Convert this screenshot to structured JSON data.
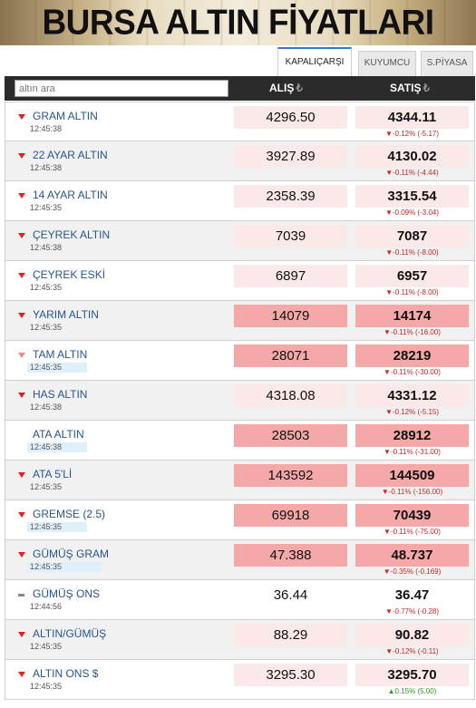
{
  "banner": {
    "title": "BURSA ALTIN FİYATLARI"
  },
  "tabs": [
    {
      "label": "KAPALIÇARŞI",
      "active": true
    },
    {
      "label": "KUYUMCU",
      "active": false
    },
    {
      "label": "S.PİYASA",
      "active": false
    }
  ],
  "header": {
    "search_placeholder": "altın ara",
    "alis_label": "ALIŞ",
    "satis_label": "SATIŞ",
    "currency_symbol": "₺"
  },
  "rows": [
    {
      "name": "GRAM ALTIN",
      "time": "12:45:38",
      "alis": "4296.50",
      "satis": "4344.11",
      "change": "▼-0.12% (-5.17)",
      "trend": "down",
      "marker": "down",
      "alis_bg": "light",
      "satis_bg": "light",
      "time_hl": false
    },
    {
      "name": "22 AYAR ALTIN",
      "time": "12:45:38",
      "alis": "3927.89",
      "satis": "4130.02",
      "change": "▼-0.11% (-4.44)",
      "trend": "down",
      "marker": "down",
      "alis_bg": "light",
      "satis_bg": "light",
      "time_hl": false
    },
    {
      "name": "14 AYAR ALTIN",
      "time": "12:45:35",
      "alis": "2358.39",
      "satis": "3315.54",
      "change": "▼-0.09% (-3.04)",
      "trend": "down",
      "marker": "down",
      "alis_bg": "light",
      "satis_bg": "light",
      "time_hl": false
    },
    {
      "name": "ÇEYREK ALTIN",
      "time": "12:45:38",
      "alis": "7039",
      "satis": "7087",
      "change": "▼-0.11% (-8.00)",
      "trend": "down",
      "marker": "down",
      "alis_bg": "light",
      "satis_bg": "light",
      "time_hl": false
    },
    {
      "name": "ÇEYREK ESKİ",
      "time": "12:45:35",
      "alis": "6897",
      "satis": "6957",
      "change": "▼-0.11% (-8.00)",
      "trend": "down",
      "marker": "down",
      "alis_bg": "light",
      "satis_bg": "light",
      "time_hl": false
    },
    {
      "name": "YARIM ALTIN",
      "time": "12:45:35",
      "alis": "14079",
      "satis": "14174",
      "change": "▼-0.11% (-16.00)",
      "trend": "down",
      "marker": "down",
      "alis_bg": "strong",
      "satis_bg": "strong",
      "time_hl": false
    },
    {
      "name": "TAM ALTIN",
      "time": "12:45:35",
      "alis": "28071",
      "satis": "28219",
      "change": "▼-0.11% (-30.00)",
      "trend": "down",
      "marker": "downlight",
      "alis_bg": "strong",
      "satis_bg": "strong",
      "time_hl": true
    },
    {
      "name": "HAS ALTIN",
      "time": "12:45:38",
      "alis": "4318.08",
      "satis": "4331.12",
      "change": "▼-0.12% (-5.15)",
      "trend": "down",
      "marker": "down",
      "alis_bg": "light",
      "satis_bg": "light",
      "time_hl": false
    },
    {
      "name": "ATA ALTIN",
      "time": "12:45:38",
      "alis": "28503",
      "satis": "28912",
      "change": "▼-0.11% (-31.00)",
      "trend": "down",
      "marker": "none",
      "alis_bg": "strong",
      "satis_bg": "strong",
      "time_hl": true
    },
    {
      "name": "ATA 5'Lİ",
      "time": "12:45:35",
      "alis": "143592",
      "satis": "144509",
      "change": "▼-0.11% (-156.00)",
      "trend": "down",
      "marker": "down",
      "alis_bg": "strong",
      "satis_bg": "strong",
      "time_hl": false
    },
    {
      "name": "GREMSE (2.5)",
      "time": "12:45:35",
      "alis": "69918",
      "satis": "70439",
      "change": "▼-0.11% (-75.00)",
      "trend": "down",
      "marker": "down",
      "alis_bg": "strong",
      "satis_bg": "strong",
      "time_hl": true
    },
    {
      "name": "GÜMÜŞ GRAM",
      "time": "12:45:35",
      "alis": "47.388",
      "satis": "48.737",
      "change": "▼-0.35% (-0.169)",
      "trend": "down",
      "marker": "down",
      "alis_bg": "strong",
      "satis_bg": "strong",
      "time_hl2": true
    },
    {
      "name": "GÜMÜŞ ONS",
      "time": "12:44:56",
      "alis": "36.44",
      "satis": "36.47",
      "change": "▼-0.77% (-0.28)",
      "trend": "down",
      "marker": "flat",
      "alis_bg": "none",
      "satis_bg": "none",
      "time_hl": false
    },
    {
      "name": "ALTIN/GÜMÜŞ",
      "time": "12:45:35",
      "alis": "88.29",
      "satis": "90.82",
      "change": "▼-0.12% (-0.11)",
      "trend": "down",
      "marker": "down",
      "alis_bg": "light",
      "satis_bg": "light",
      "time_hl": false
    },
    {
      "name": "ALTIN ONS $",
      "time": "12:45:35",
      "alis": "3295.30",
      "satis": "3295.70",
      "change": "▲0.15% (5.00)",
      "trend": "up",
      "marker": "down",
      "alis_bg": "light",
      "satis_bg": "light",
      "time_hl": false
    }
  ]
}
